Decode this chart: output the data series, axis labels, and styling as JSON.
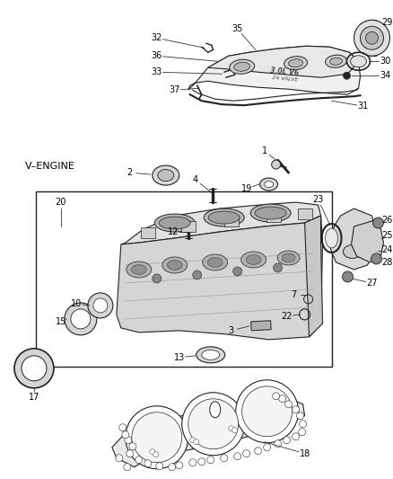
{
  "bg_color": "#ffffff",
  "line_color": "#222222",
  "label_color": "#000000",
  "fig_width": 4.38,
  "fig_height": 5.33,
  "dpi": 100,
  "v_engine_label": "V–ENGINE"
}
